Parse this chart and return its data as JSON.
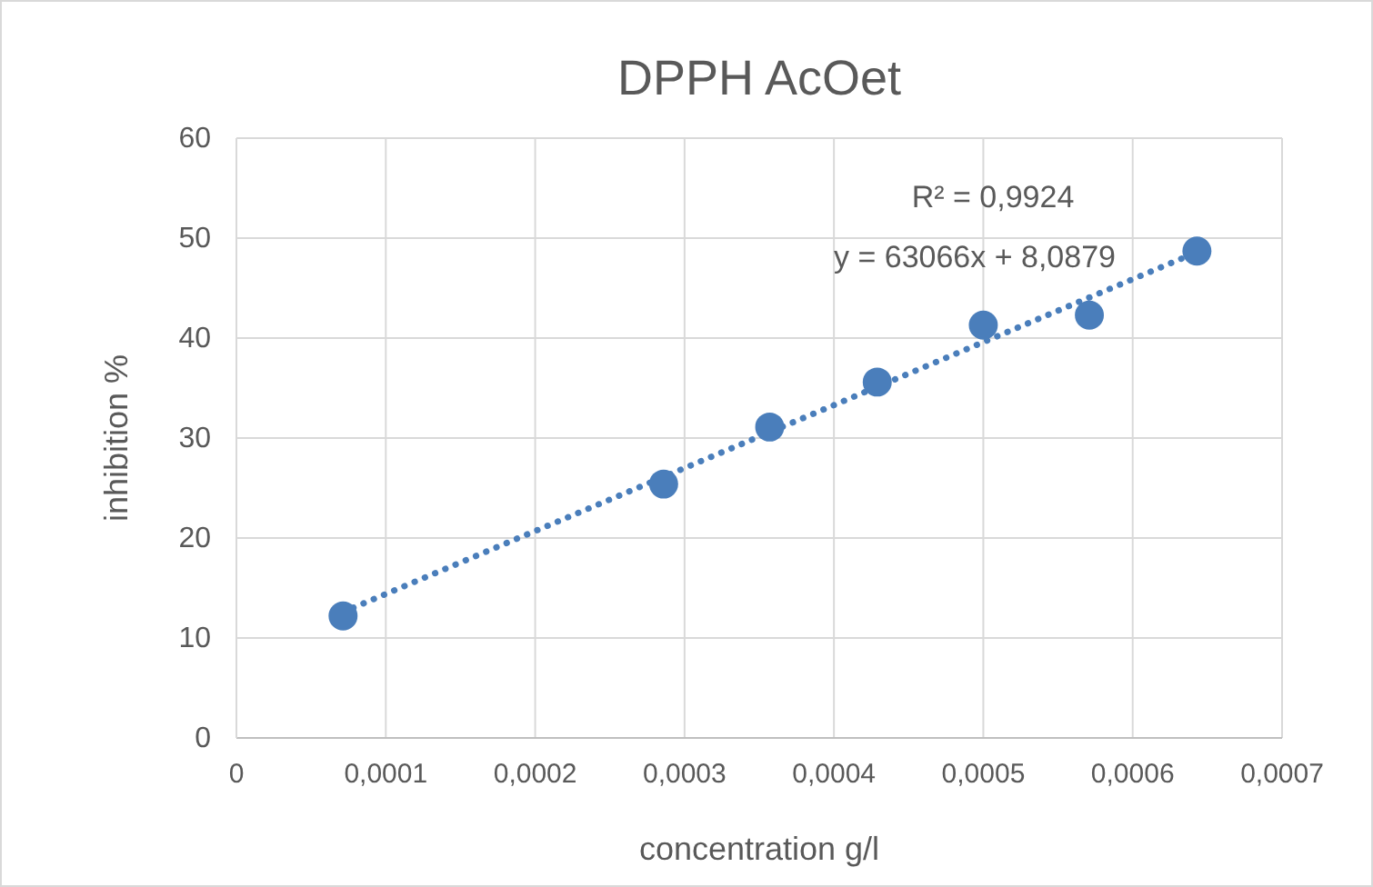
{
  "chart_data": {
    "type": "scatter",
    "title": "DPPH AcOet",
    "xlabel": "concentration g/l",
    "ylabel": "inhibition %",
    "series": [
      {
        "color": "#4a7ebb",
        "marker": "circle",
        "x": [
          7.14e-05,
          0.000286,
          0.000357,
          0.000429,
          0.0005,
          0.000571,
          0.000643
        ],
        "values": [
          12.2,
          25.4,
          31.1,
          35.6,
          41.3,
          42.3,
          48.7
        ]
      },
      {
        "type": "line",
        "color": "#4a7ebb",
        "marker": "none",
        "line_style": "dotted",
        "x": [
          7.14e-05,
          0.000643
        ],
        "values": [
          12.6,
          48.6
        ]
      }
    ],
    "annotations": [
      "R² = 0,9924",
      "y = 63066x + 8,0879"
    ],
    "xlim": [
      0,
      0.0007
    ],
    "xticks": [
      0,
      {
        "value": 0.0001,
        "label": "0,0001"
      },
      {
        "value": 0.0002,
        "label": "0,0002"
      },
      {
        "value": 0.0003,
        "label": "0,0003"
      },
      {
        "value": 0.0004,
        "label": "0,0004"
      },
      {
        "value": 0.0005,
        "label": "0,0005"
      },
      {
        "value": 0.0006,
        "label": "0,0006"
      },
      {
        "value": 0.0007,
        "label": "0,0007"
      }
    ],
    "ylim": [
      0,
      60
    ],
    "yticks": [
      0,
      10,
      20,
      30,
      40,
      50,
      60
    ],
    "grid": true
  }
}
